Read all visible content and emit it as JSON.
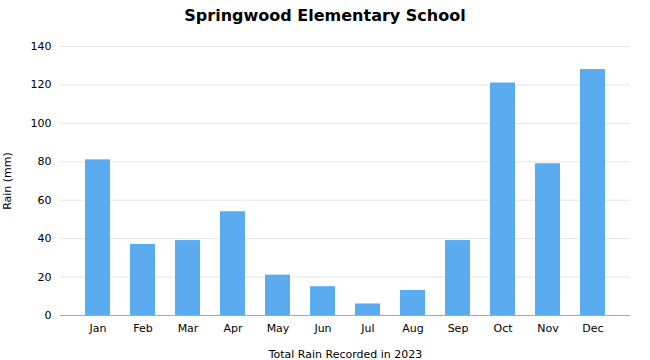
{
  "chart_data": {
    "type": "bar",
    "title": "Springwood Elementary School",
    "xlabel": "Total Rain Recorded in 2023",
    "ylabel": "Rain (mm)",
    "categories": [
      "Jan",
      "Feb",
      "Mar",
      "Apr",
      "May",
      "Jun",
      "Jul",
      "Aug",
      "Sep",
      "Oct",
      "Nov",
      "Dec"
    ],
    "values": [
      81,
      37,
      39,
      54,
      21,
      15,
      6,
      13,
      39,
      121,
      79,
      128
    ],
    "color": "#5aabf0",
    "ylim": [
      0,
      140
    ],
    "yticks": [
      0,
      20,
      40,
      60,
      80,
      100,
      120,
      140
    ],
    "grid": true
  }
}
